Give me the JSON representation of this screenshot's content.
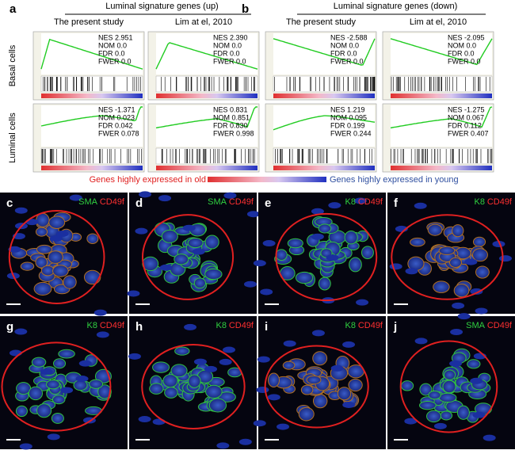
{
  "panels": [
    {
      "label": "a",
      "header": "Luminal signature genes (up)",
      "columns": [
        "The present study",
        "Lim at el, 2010"
      ]
    },
    {
      "label": "b",
      "header": "Luminal signature genes (down)",
      "columns": [
        "The present study",
        "Lim at el, 2010"
      ]
    }
  ],
  "rows": [
    "Basal cells",
    "Luminal cells"
  ],
  "gsea_plots": [
    [
      "NES 2.951",
      "NOM 0.0",
      "FDR 0.0",
      "FWER 0.0"
    ],
    [
      "NES 2.390",
      "NOM 0.0",
      "FDR 0.0",
      "FWER 0.0"
    ],
    [
      "NES -2.588",
      "NOM 0.0",
      "FDR 0.0",
      "FWER 0.0"
    ],
    [
      "NES -2.095",
      "NOM 0.0",
      "FDR 0.0",
      "FWER 0.0"
    ],
    [
      "NES -1.371",
      "NOM 0.023",
      "FDR 0.042",
      "FWER 0.078"
    ],
    [
      "NES 0.831",
      "NOM 0.851",
      "FDR 0.830",
      "FWER 0.998"
    ],
    [
      "NES 1.219",
      "NOM 0.095",
      "FDR 0.199",
      "FWER 0.244"
    ],
    [
      "NES -1.275",
      "NOM 0.067",
      "FDR 0.112",
      "FWER 0.407"
    ]
  ],
  "legend": {
    "old": "Genes highly expressed in old",
    "young": "Genes highly expressed in young"
  },
  "micrographs": [
    {
      "label": "c",
      "green": "SMA",
      "red": "CD49f"
    },
    {
      "label": "d",
      "green": "SMA",
      "red": "CD49f"
    },
    {
      "label": "e",
      "green": "K8",
      "red": "CD49f"
    },
    {
      "label": "f",
      "green": "K8",
      "red": "CD49f"
    },
    {
      "label": "g",
      "green": "K8",
      "red": "CD49f"
    },
    {
      "label": "h",
      "green": "K8",
      "red": "CD49f"
    },
    {
      "label": "i",
      "green": "K8",
      "red": "CD49f"
    },
    {
      "label": "j",
      "green": "SMA",
      "red": "CD49f"
    }
  ]
}
